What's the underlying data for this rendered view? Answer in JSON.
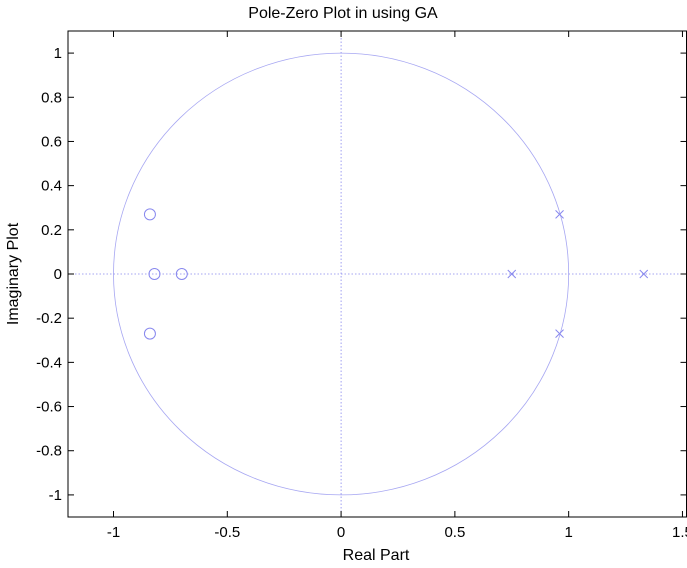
{
  "chart_data": {
    "type": "scatter",
    "title": "Pole-Zero Plot in using GA",
    "xlabel": "Real Part",
    "ylabel": "Imaginary Plot",
    "xlim": [
      -1.2,
      1.52
    ],
    "ylim": [
      -1.1,
      1.1
    ],
    "x_ticks": [
      -1,
      -0.5,
      0,
      0.5,
      1,
      1.5
    ],
    "x_tick_labels": [
      "-1",
      "-0.5",
      "0",
      "0.5",
      "1",
      "1.5"
    ],
    "y_ticks": [
      1,
      0.8,
      0.6,
      0.4,
      0.2,
      0,
      -0.2,
      -0.4,
      -0.6,
      -0.8,
      -1
    ],
    "y_tick_labels": [
      "1",
      "0.8",
      "0.6",
      "0.4",
      "0.2",
      "0",
      "-0.2",
      "-0.4",
      "-0.6",
      "-0.8",
      "-1"
    ],
    "grid": false,
    "unit_circle": true,
    "marker_color": "#8888ee",
    "series": [
      {
        "marker": "circle",
        "points": [
          {
            "x": -0.84,
            "y": 0.27
          },
          {
            "x": -0.82,
            "y": 0.0
          },
          {
            "x": -0.7,
            "y": 0.0
          },
          {
            "x": -0.84,
            "y": -0.27
          }
        ]
      },
      {
        "marker": "x",
        "points": [
          {
            "x": 0.96,
            "y": 0.27
          },
          {
            "x": 0.75,
            "y": 0.0
          },
          {
            "x": 1.33,
            "y": 0.0
          },
          {
            "x": 0.96,
            "y": -0.27
          }
        ]
      }
    ]
  }
}
